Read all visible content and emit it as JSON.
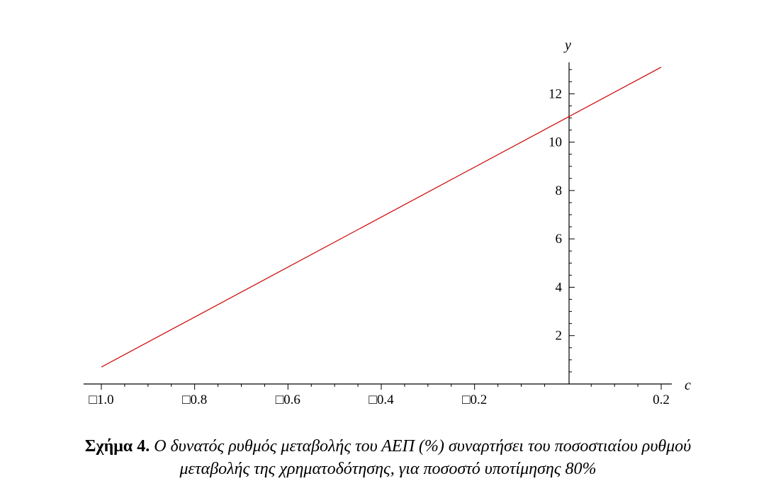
{
  "chart_data": {
    "type": "line",
    "xlabel": "c",
    "ylabel": "y",
    "xlim": [
      -1.0,
      0.2
    ],
    "ylim": [
      0,
      13.3
    ],
    "x_ticks": [
      {
        "value": -1.0,
        "label": "□1.0"
      },
      {
        "value": -0.8,
        "label": "□0.8"
      },
      {
        "value": -0.6,
        "label": "□0.6"
      },
      {
        "value": -0.4,
        "label": "□0.4"
      },
      {
        "value": -0.2,
        "label": "□0.2"
      },
      {
        "value": 0.2,
        "label": "0.2"
      }
    ],
    "y_ticks": [
      {
        "value": 2,
        "label": "2"
      },
      {
        "value": 4,
        "label": "4"
      },
      {
        "value": 6,
        "label": "6"
      },
      {
        "value": 8,
        "label": "8"
      },
      {
        "value": 10,
        "label": "10"
      },
      {
        "value": 12,
        "label": "12"
      }
    ],
    "series": [
      {
        "x": [
          -1.0,
          0.2
        ],
        "y": [
          0.7,
          13.1
        ],
        "color": "#cc0000"
      }
    ],
    "grid": false
  },
  "caption": {
    "label": "Σχήμα 4",
    "label_suffix": ".",
    "line1": "Ο δυνατός ρυθμός μεταβολής του ΑΕΠ (%) συναρτήσει του ποσοστιαίου ρυθμού",
    "line2": "μεταβολής της χρηματοδότησης, για ποσοστό υποτίμησης 80%"
  }
}
